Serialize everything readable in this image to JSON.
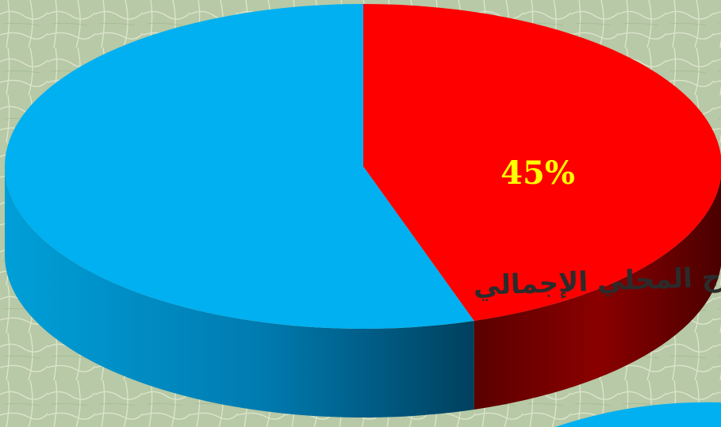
{
  "chart_data": {
    "type": "pie",
    "style": "3d",
    "slices": [
      {
        "label": "",
        "value": 45,
        "color": "#ff0000",
        "data_label": "45%"
      },
      {
        "label": "",
        "value": 55,
        "color": "#00b0f0",
        "data_label": ""
      }
    ],
    "label_color": "#ffff00",
    "annotation": "ج المحلي الإجمالي",
    "colors": {
      "background": "#b7c9a6",
      "side_red": "#6e0000",
      "side_blue": "#006a96"
    }
  }
}
